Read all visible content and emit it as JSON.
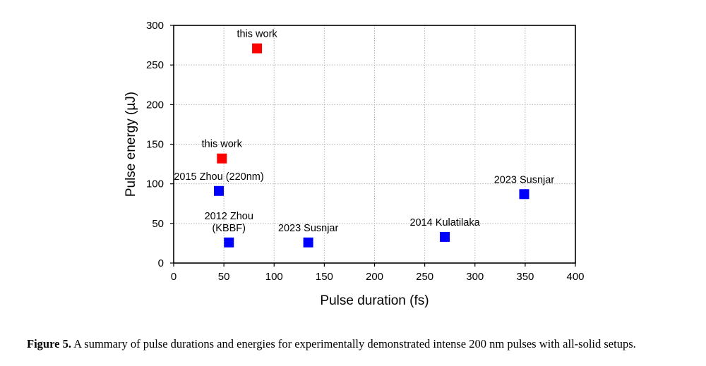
{
  "chart_data": {
    "type": "scatter",
    "title": "",
    "xlabel": "Pulse duration (fs)",
    "ylabel": "Pulse energy (µJ)",
    "xlim": [
      0,
      400
    ],
    "ylim": [
      0,
      300
    ],
    "xticks": [
      0,
      50,
      100,
      150,
      200,
      250,
      300,
      350,
      400
    ],
    "yticks": [
      0,
      50,
      100,
      150,
      200,
      250,
      300
    ],
    "grid": true,
    "marker": "square",
    "series": [
      {
        "name": "this work",
        "color": "#ff0000",
        "points": [
          {
            "x": 83,
            "y": 271,
            "label": [
              "this work"
            ]
          },
          {
            "x": 48,
            "y": 132,
            "label": [
              "this work"
            ]
          }
        ]
      },
      {
        "name": "previous work",
        "color": "#0000ff",
        "points": [
          {
            "x": 45,
            "y": 91,
            "label": [
              "2015 Zhou (220nm)"
            ]
          },
          {
            "x": 55,
            "y": 26,
            "label": [
              "2012 Zhou",
              "(KBBF)"
            ]
          },
          {
            "x": 134,
            "y": 26,
            "label": [
              "2023 Susnjar"
            ]
          },
          {
            "x": 270,
            "y": 33,
            "label": [
              "2014 Kulatilaka"
            ]
          },
          {
            "x": 349,
            "y": 87,
            "label": [
              "2023 Susnjar"
            ]
          }
        ]
      }
    ]
  },
  "caption": {
    "lead": "Figure 5.",
    "text": " A summary of pulse durations and energies for experimentally demonstrated intense 200 nm pulses with all-solid setups."
  }
}
